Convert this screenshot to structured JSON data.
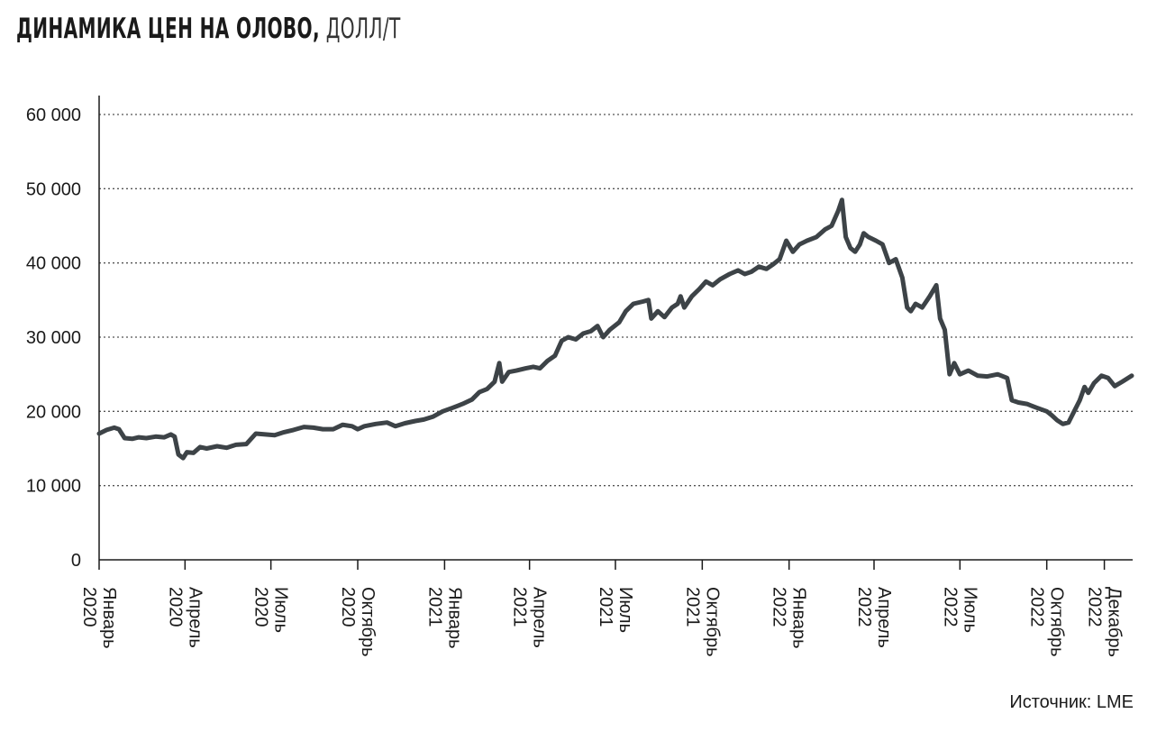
{
  "title": "ДИНАМИКА ЦЕН НА ОЛОВО,",
  "unit": "ДОЛЛ/Т",
  "source": "Источник: LME",
  "colors": {
    "line": "#3d4347",
    "axis": "#1a1a1a",
    "grid": "#555555"
  },
  "chart_data": {
    "type": "line",
    "title": "ДИНАМИКА ЦЕН НА ОЛОВО, ДОЛЛ/Т",
    "ylabel": "",
    "xlabel": "",
    "ylim": [
      0,
      60000
    ],
    "yticks": [
      0,
      10000,
      20000,
      30000,
      40000,
      50000,
      60000
    ],
    "ytick_labels": [
      "0",
      "10 000",
      "20 000",
      "30 000",
      "40 000",
      "50 000",
      "60 000"
    ],
    "grid": "horizontal dotted",
    "xlim": [
      "2020-01-01",
      "2022-12-31"
    ],
    "xticks": [
      {
        "date": "2020-01-01",
        "month": "Январь",
        "year": "2020"
      },
      {
        "date": "2020-04-01",
        "month": "Апрель",
        "year": "2020"
      },
      {
        "date": "2020-07-01",
        "month": "Июль",
        "year": "2020"
      },
      {
        "date": "2020-10-01",
        "month": "Октябрь",
        "year": "2020"
      },
      {
        "date": "2021-01-01",
        "month": "Январь",
        "year": "2021"
      },
      {
        "date": "2021-04-01",
        "month": "Апрель",
        "year": "2021"
      },
      {
        "date": "2021-07-01",
        "month": "Июль",
        "year": "2021"
      },
      {
        "date": "2021-10-01",
        "month": "Октябрь",
        "year": "2021"
      },
      {
        "date": "2022-01-01",
        "month": "Январь",
        "year": "2022"
      },
      {
        "date": "2022-04-01",
        "month": "Апрель",
        "year": "2022"
      },
      {
        "date": "2022-07-01",
        "month": "Июль",
        "year": "2022"
      },
      {
        "date": "2022-10-01",
        "month": "Октябрь",
        "year": "2022"
      },
      {
        "date": "2022-12-01",
        "month": "Декабрь",
        "year": "2022"
      }
    ],
    "series": [
      {
        "points": [
          [
            "2020-01-01",
            17000
          ],
          [
            "2020-01-09",
            17500
          ],
          [
            "2020-01-17",
            17800
          ],
          [
            "2020-01-22",
            17600
          ],
          [
            "2020-01-28",
            16400
          ],
          [
            "2020-02-05",
            16300
          ],
          [
            "2020-02-12",
            16500
          ],
          [
            "2020-02-20",
            16400
          ],
          [
            "2020-03-01",
            16600
          ],
          [
            "2020-03-10",
            16500
          ],
          [
            "2020-03-17",
            16900
          ],
          [
            "2020-03-21",
            16600
          ],
          [
            "2020-03-25",
            14200
          ],
          [
            "2020-03-30",
            13700
          ],
          [
            "2020-04-03",
            14500
          ],
          [
            "2020-04-10",
            14400
          ],
          [
            "2020-04-17",
            15200
          ],
          [
            "2020-04-24",
            15000
          ],
          [
            "2020-05-05",
            15300
          ],
          [
            "2020-05-15",
            15100
          ],
          [
            "2020-05-25",
            15500
          ],
          [
            "2020-06-05",
            15600
          ],
          [
            "2020-06-15",
            17000
          ],
          [
            "2020-06-25",
            16900
          ],
          [
            "2020-07-05",
            16800
          ],
          [
            "2020-07-15",
            17200
          ],
          [
            "2020-07-25",
            17500
          ],
          [
            "2020-08-05",
            17900
          ],
          [
            "2020-08-15",
            17800
          ],
          [
            "2020-08-25",
            17600
          ],
          [
            "2020-09-05",
            17600
          ],
          [
            "2020-09-15",
            18200
          ],
          [
            "2020-09-25",
            18000
          ],
          [
            "2020-10-01",
            17600
          ],
          [
            "2020-10-08",
            18000
          ],
          [
            "2020-10-20",
            18300
          ],
          [
            "2020-11-01",
            18500
          ],
          [
            "2020-11-10",
            18000
          ],
          [
            "2020-11-20",
            18400
          ],
          [
            "2020-12-01",
            18700
          ],
          [
            "2020-12-10",
            18900
          ],
          [
            "2020-12-20",
            19300
          ],
          [
            "2020-12-30",
            20000
          ],
          [
            "2021-01-10",
            20500
          ],
          [
            "2021-01-20",
            21000
          ],
          [
            "2021-01-30",
            21600
          ],
          [
            "2021-02-07",
            22600
          ],
          [
            "2021-02-15",
            23000
          ],
          [
            "2021-02-23",
            24000
          ],
          [
            "2021-02-28",
            26500
          ],
          [
            "2021-03-03",
            24000
          ],
          [
            "2021-03-10",
            25300
          ],
          [
            "2021-03-18",
            25500
          ],
          [
            "2021-03-28",
            25800
          ],
          [
            "2021-04-05",
            26000
          ],
          [
            "2021-04-12",
            25800
          ],
          [
            "2021-04-20",
            26800
          ],
          [
            "2021-04-28",
            27500
          ],
          [
            "2021-05-05",
            29500
          ],
          [
            "2021-05-12",
            30000
          ],
          [
            "2021-05-20",
            29700
          ],
          [
            "2021-05-28",
            30500
          ],
          [
            "2021-06-05",
            30800
          ],
          [
            "2021-06-12",
            31500
          ],
          [
            "2021-06-18",
            30000
          ],
          [
            "2021-06-25",
            31000
          ],
          [
            "2021-07-05",
            32000
          ],
          [
            "2021-07-12",
            33500
          ],
          [
            "2021-07-20",
            34500
          ],
          [
            "2021-07-30",
            34800
          ],
          [
            "2021-08-05",
            35000
          ],
          [
            "2021-08-08",
            32500
          ],
          [
            "2021-08-15",
            33500
          ],
          [
            "2021-08-22",
            32700
          ],
          [
            "2021-08-30",
            34000
          ],
          [
            "2021-09-05",
            34500
          ],
          [
            "2021-09-08",
            35500
          ],
          [
            "2021-09-12",
            34000
          ],
          [
            "2021-09-20",
            35500
          ],
          [
            "2021-09-28",
            36500
          ],
          [
            "2021-10-05",
            37500
          ],
          [
            "2021-10-12",
            37000
          ],
          [
            "2021-10-20",
            37800
          ],
          [
            "2021-10-30",
            38500
          ],
          [
            "2021-11-08",
            39000
          ],
          [
            "2021-11-15",
            38500
          ],
          [
            "2021-11-22",
            38800
          ],
          [
            "2021-11-30",
            39500
          ],
          [
            "2021-12-08",
            39200
          ],
          [
            "2021-12-15",
            39800
          ],
          [
            "2021-12-22",
            40500
          ],
          [
            "2021-12-29",
            43000
          ],
          [
            "2022-01-05",
            41500
          ],
          [
            "2022-01-12",
            42500
          ],
          [
            "2022-01-20",
            43000
          ],
          [
            "2022-01-30",
            43500
          ],
          [
            "2022-02-08",
            44500
          ],
          [
            "2022-02-15",
            45000
          ],
          [
            "2022-02-22",
            47000
          ],
          [
            "2022-02-26",
            48500
          ],
          [
            "2022-03-02",
            43500
          ],
          [
            "2022-03-07",
            42000
          ],
          [
            "2022-03-12",
            41500
          ],
          [
            "2022-03-17",
            42500
          ],
          [
            "2022-03-21",
            44000
          ],
          [
            "2022-03-26",
            43500
          ],
          [
            "2022-04-03",
            43000
          ],
          [
            "2022-04-10",
            42500
          ],
          [
            "2022-04-17",
            40000
          ],
          [
            "2022-04-24",
            40500
          ],
          [
            "2022-05-01",
            38000
          ],
          [
            "2022-05-06",
            34000
          ],
          [
            "2022-05-10",
            33500
          ],
          [
            "2022-05-15",
            34500
          ],
          [
            "2022-05-22",
            34000
          ],
          [
            "2022-05-30",
            35500
          ],
          [
            "2022-06-06",
            37000
          ],
          [
            "2022-06-10",
            32500
          ],
          [
            "2022-06-15",
            31000
          ],
          [
            "2022-06-20",
            25000
          ],
          [
            "2022-06-25",
            26500
          ],
          [
            "2022-07-01",
            25000
          ],
          [
            "2022-07-10",
            25500
          ],
          [
            "2022-07-20",
            24800
          ],
          [
            "2022-07-30",
            24700
          ],
          [
            "2022-08-10",
            25000
          ],
          [
            "2022-08-20",
            24500
          ],
          [
            "2022-08-25",
            21500
          ],
          [
            "2022-09-01",
            21200
          ],
          [
            "2022-09-10",
            21000
          ],
          [
            "2022-09-20",
            20500
          ],
          [
            "2022-10-01",
            20000
          ],
          [
            "2022-10-06",
            19500
          ],
          [
            "2022-10-12",
            18800
          ],
          [
            "2022-10-18",
            18300
          ],
          [
            "2022-10-24",
            18500
          ],
          [
            "2022-10-30",
            20000
          ],
          [
            "2022-11-05",
            21500
          ],
          [
            "2022-11-10",
            23300
          ],
          [
            "2022-11-14",
            22500
          ],
          [
            "2022-11-20",
            23800
          ],
          [
            "2022-11-28",
            24800
          ],
          [
            "2022-12-05",
            24500
          ],
          [
            "2022-12-12",
            23400
          ],
          [
            "2022-12-20",
            24000
          ],
          [
            "2022-12-30",
            24800
          ]
        ]
      }
    ]
  }
}
